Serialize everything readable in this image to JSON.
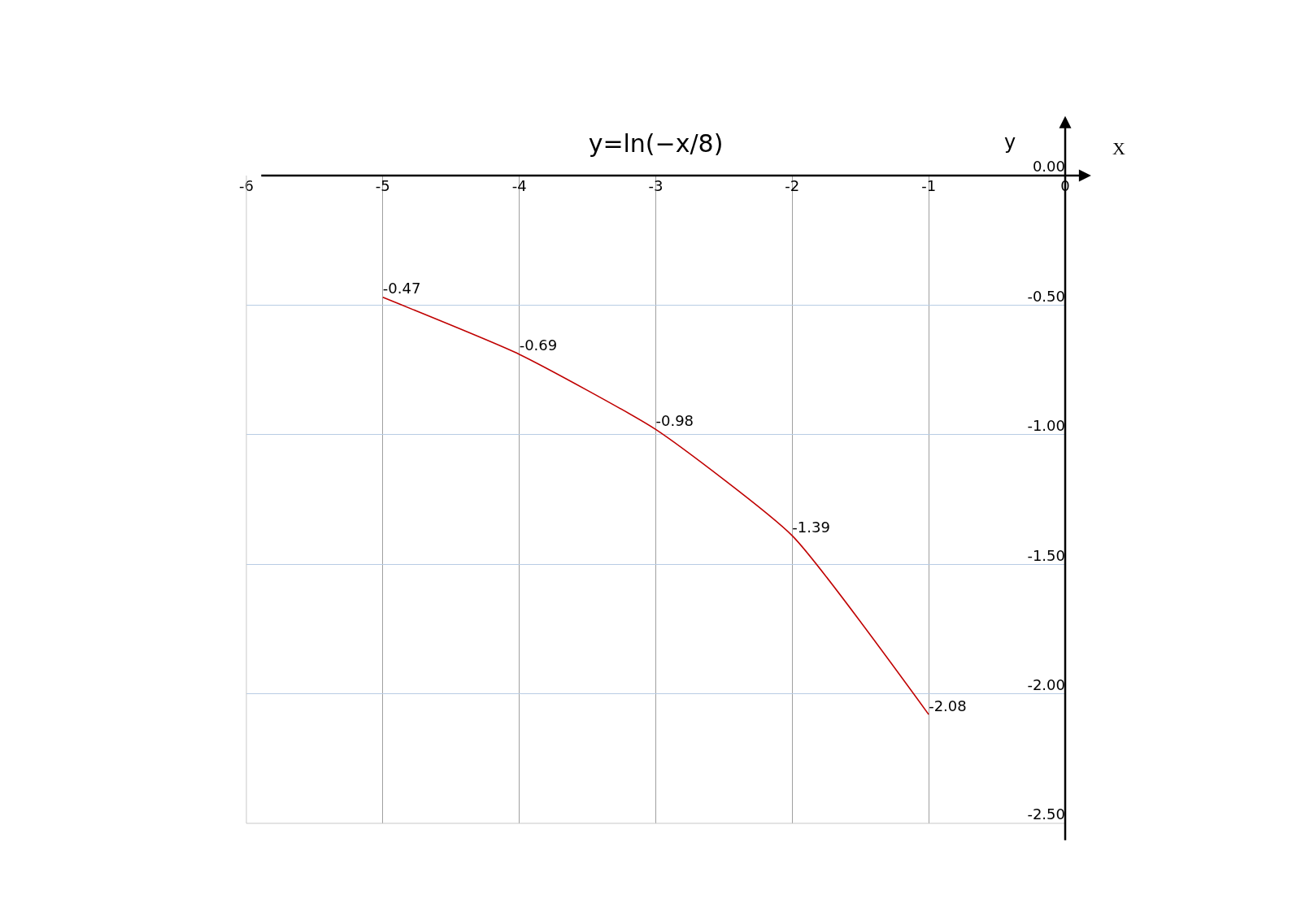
{
  "chart_data": {
    "type": "line",
    "title": "y=ln(−x/8)",
    "xlabel": "X",
    "ylabel": "y",
    "x": [
      -5,
      -4,
      -3,
      -2,
      -1
    ],
    "series": [
      {
        "color": "#c00000",
        "values": [
          -0.47,
          -0.69,
          -0.98,
          -1.39,
          -2.08
        ]
      }
    ],
    "data_labels": true,
    "xlim": [
      -6,
      0
    ],
    "xticks": [
      -6,
      -5,
      -4,
      -3,
      -2,
      -1,
      0
    ],
    "ylim": [
      -2.5,
      0
    ],
    "yticks": [
      {
        "value": 0,
        "label": "0.00"
      },
      {
        "value": -0.5,
        "label": "-0.50"
      },
      {
        "value": -1,
        "label": "-1.00"
      },
      {
        "value": -1.5,
        "label": "-1.50"
      },
      {
        "value": -2,
        "label": "-2.00"
      },
      {
        "value": -2.5,
        "label": "-2.50"
      }
    ],
    "grid": true,
    "marker": "none",
    "line_style": "solid"
  }
}
